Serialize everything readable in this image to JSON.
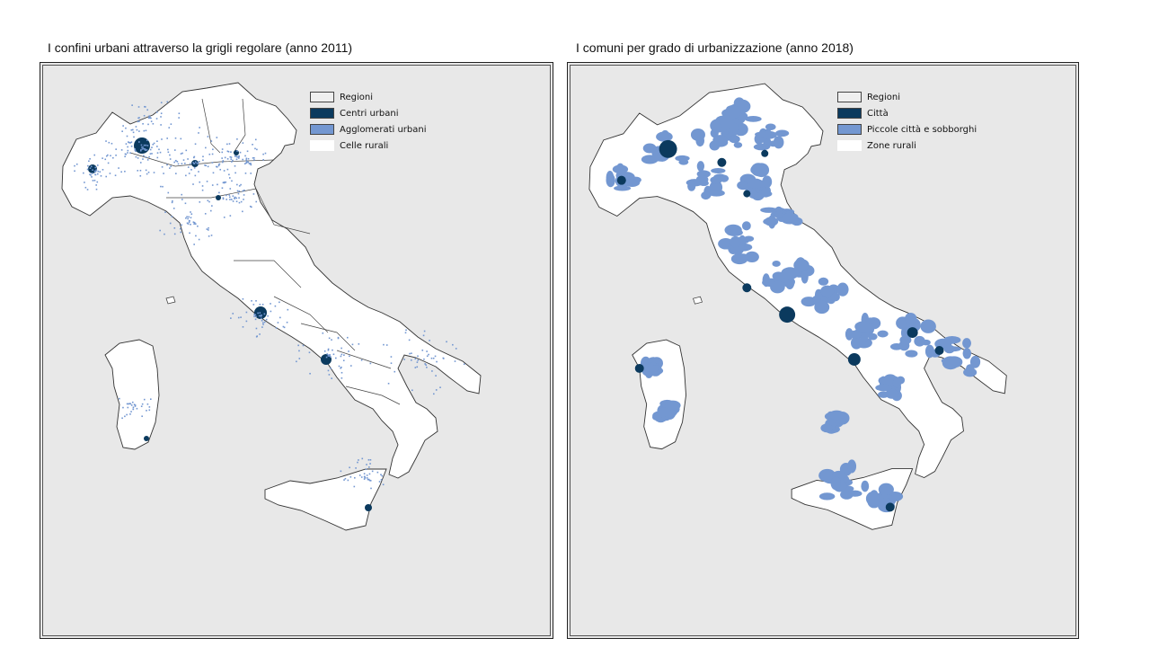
{
  "panels": [
    {
      "title": "I confini urbani  attraverso la grigli regolare (anno 2011)",
      "legend": [
        {
          "label": "Regioni",
          "color": "#efefef"
        },
        {
          "label": "Centri urbani",
          "color": "#0b3a5e"
        },
        {
          "label": "Agglomerati urbani",
          "color": "#7397d1"
        },
        {
          "label": "Celle rurali",
          "color": "#ffffff"
        }
      ]
    },
    {
      "title": "I comuni per grado di urbanizzazione (anno 2018)",
      "legend": [
        {
          "label": "Regioni",
          "color": "#efefef"
        },
        {
          "label": "Città",
          "color": "#0b3a5e"
        },
        {
          "label": "Piccole città e sobborghi",
          "color": "#7397d1"
        },
        {
          "label": "Zone rurali",
          "color": "#ffffff"
        }
      ]
    }
  ],
  "colors": {
    "background": "#e8e8e8",
    "land": "#ffffff",
    "border": "#333333",
    "dark": "#0b3a5e",
    "light": "#7397d1"
  }
}
